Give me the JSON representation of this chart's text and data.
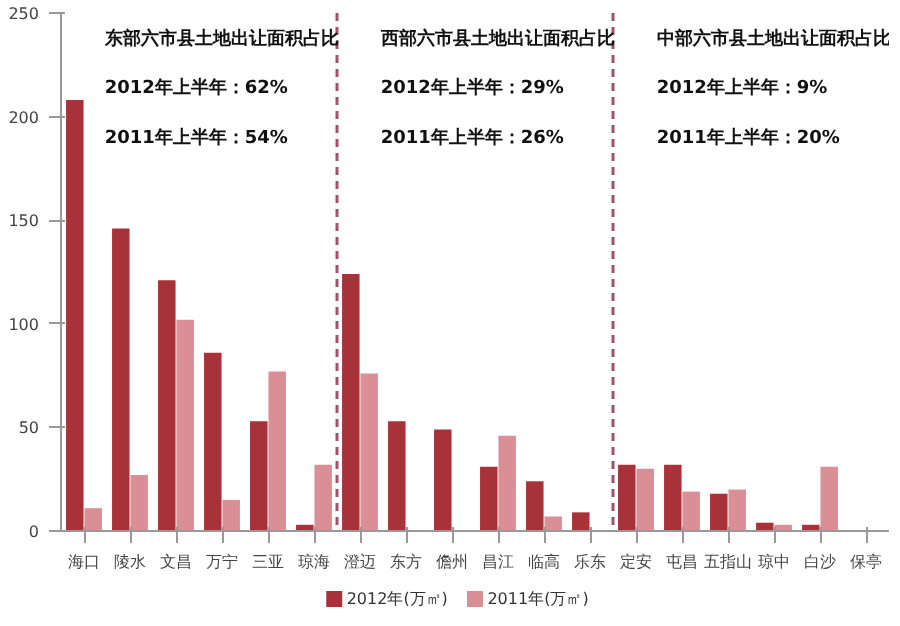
{
  "chart_data": {
    "type": "bar",
    "categories": [
      "海口",
      "陵水",
      "文昌",
      "万宁",
      "三亚",
      "琼海",
      "澄迈",
      "东方",
      "儋州",
      "昌江",
      "临高",
      "乐东",
      "定安",
      "屯昌",
      "五指山",
      "琼中",
      "白沙",
      "保亭"
    ],
    "series": [
      {
        "name": "2012年(万㎡)",
        "color": "#a8323a",
        "values": [
          208,
          146,
          121,
          86,
          53,
          3,
          124,
          53,
          49,
          31,
          24,
          9,
          32,
          32,
          18,
          4,
          3,
          0
        ]
      },
      {
        "name": "2011年(万㎡)",
        "color": "#d98f95",
        "values": [
          11,
          27,
          102,
          15,
          77,
          32,
          76,
          0,
          0,
          46,
          7,
          0,
          30,
          19,
          20,
          3,
          31,
          0
        ]
      }
    ],
    "ylim": [
      0,
      250
    ],
    "yticks": [
      0,
      50,
      100,
      150,
      200,
      250
    ],
    "annotations": [
      "东部六市县土地出让面积占比",
      "2012年上半年：62%",
      "2011年上半年：54%",
      "西部六市县土地出让面积占比",
      "2012年上半年：29%",
      "2011年上半年：26%",
      "中部六市县土地出让面积占比",
      "2012年上半年：9%",
      "2011年上半年：20%"
    ],
    "grid": false,
    "legend": "bottom"
  }
}
